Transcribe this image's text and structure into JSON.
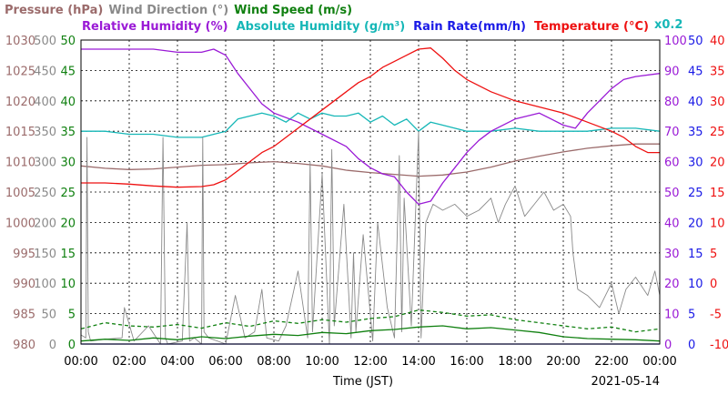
{
  "chart_data": {
    "type": "line",
    "date_label": "2021-05-14",
    "xlabel": "Time (JST)",
    "x_ticks": [
      "00:00",
      "02:00",
      "04:00",
      "06:00",
      "08:00",
      "10:00",
      "12:00",
      "14:00",
      "16:00",
      "18:00",
      "20:00",
      "22:00",
      "00:00"
    ],
    "x_range_hours": [
      0,
      24
    ],
    "scale_note": "x0.2",
    "colors": {
      "pressure": "#9b6b6b",
      "wind_direction": "#8a8a8a",
      "wind_speed": "#108010",
      "relative_humidity": "#9a1ad6",
      "absolute_humidity": "#16b7b7",
      "rain_rate": "#1a1ae6",
      "temperature": "#ee1111",
      "grid": "#000000"
    },
    "legend_top": [
      {
        "key": "pressure",
        "text": "Pressure (hPa)"
      },
      {
        "key": "wind_direction",
        "text": "Wind Direction (°)"
      },
      {
        "key": "wind_speed",
        "text": "Wind Speed (m/s)"
      }
    ],
    "legend_bottom": [
      {
        "key": "relative_humidity",
        "text": "Relative Humidity (%)"
      },
      {
        "key": "absolute_humidity",
        "text": "Absolute Humidity (g/m³)"
      },
      {
        "key": "rain_rate",
        "text": "Rain Rate(mm/h)"
      },
      {
        "key": "temperature",
        "text": "Temperature (°C)"
      }
    ],
    "axes": {
      "pressure": {
        "ticks": [
          "980",
          "985",
          "990",
          "995",
          "1000",
          "1005",
          "1010",
          "1015",
          "1020",
          "1025",
          "1030"
        ],
        "ylim": [
          980,
          1030
        ]
      },
      "wind_direction": {
        "ticks": [
          "0",
          "50",
          "100",
          "150",
          "200",
          "250",
          "300",
          "350",
          "400",
          "450",
          "500"
        ],
        "ylim": [
          0,
          500
        ]
      },
      "wind_speed": {
        "ticks": [
          "0",
          "5",
          "10",
          "15",
          "20",
          "25",
          "30",
          "35",
          "40",
          "45",
          "50"
        ],
        "ylim": [
          0,
          50
        ]
      },
      "relative_humidity": {
        "ticks": [
          "0",
          "10",
          "20",
          "30",
          "40",
          "50",
          "60",
          "70",
          "80",
          "90",
          "100"
        ],
        "ylim": [
          0,
          100
        ]
      },
      "rain_rate": {
        "ticks": [
          "0",
          "5",
          "10",
          "15",
          "20",
          "25",
          "30",
          "35",
          "40",
          "45",
          "50"
        ],
        "ylim": [
          0,
          50
        ]
      },
      "temperature": {
        "ticks": [
          "-10",
          "-5",
          "0",
          "5",
          "10",
          "15",
          "20",
          "25",
          "30",
          "35",
          "40"
        ],
        "ylim": [
          -10,
          40
        ]
      }
    },
    "series": [
      {
        "name": "Pressure (hPa)",
        "key": "pressure",
        "axis": "pressure",
        "style": "solid",
        "x": [
          0,
          1,
          2,
          3,
          4,
          5,
          6,
          7,
          8,
          9,
          10,
          11,
          12,
          13,
          14,
          15,
          16,
          17,
          18,
          19,
          20,
          21,
          22,
          23,
          24
        ],
        "values": [
          1009.3,
          1008.9,
          1008.7,
          1008.8,
          1009.1,
          1009.4,
          1009.5,
          1009.8,
          1010.0,
          1009.7,
          1009.3,
          1008.6,
          1008.2,
          1007.9,
          1007.6,
          1007.8,
          1008.3,
          1009.1,
          1010.1,
          1010.9,
          1011.6,
          1012.2,
          1012.6,
          1012.9,
          1012.9
        ]
      },
      {
        "name": "Wind Direction (°)",
        "key": "wind_direction",
        "axis": "wind_direction",
        "style": "solid",
        "x": [
          0,
          0.2,
          0.25,
          0.3,
          0.4,
          1,
          1.7,
          1.8,
          2.2,
          2.8,
          3.3,
          3.4,
          3.5,
          3.6,
          4.2,
          4.4,
          4.5,
          4.7,
          5.0,
          5.05,
          5.1,
          5.3,
          6.0,
          6.4,
          6.8,
          7.2,
          7.5,
          7.7,
          8.2,
          8.5,
          9.0,
          9.4,
          9.5,
          9.6,
          10.0,
          10.3,
          10.4,
          10.5,
          10.9,
          11.2,
          11.3,
          11.4,
          11.7,
          12.1,
          12.3,
          12.7,
          13.0,
          13.2,
          13.3,
          13.4,
          13.7,
          14.0,
          14.1,
          14.3,
          14.6,
          15.0,
          15.5,
          16.0,
          16.5,
          17.0,
          17.3,
          17.6,
          18.0,
          18.4,
          18.8,
          19.2,
          19.6,
          20.0,
          20.3,
          20.4,
          20.6,
          21.0,
          21.5,
          22.0,
          22.3,
          22.6,
          23.0,
          23.5,
          23.8,
          24
        ],
        "values": [
          15,
          10,
          340,
          20,
          5,
          8,
          10,
          60,
          5,
          30,
          0,
          340,
          10,
          0,
          5,
          200,
          5,
          10,
          0,
          340,
          20,
          10,
          0,
          80,
          10,
          20,
          90,
          10,
          5,
          30,
          120,
          10,
          300,
          20,
          280,
          0,
          320,
          30,
          230,
          10,
          150,
          20,
          180,
          5,
          200,
          60,
          10,
          310,
          20,
          240,
          30,
          350,
          10,
          200,
          230,
          220,
          230,
          210,
          220,
          240,
          200,
          230,
          260,
          210,
          230,
          250,
          220,
          230,
          210,
          150,
          90,
          80,
          60,
          100,
          50,
          90,
          110,
          80,
          120,
          80
        ]
      },
      {
        "name": "Wind Speed (m/s)",
        "key": "wind_speed",
        "axis": "wind_speed",
        "style": "solid",
        "x": [
          0,
          1,
          2,
          3,
          4,
          5,
          6,
          7,
          8,
          9,
          10,
          11,
          12,
          13,
          14,
          15,
          16,
          17,
          18,
          19,
          20,
          21,
          22,
          23,
          24
        ],
        "values": [
          0.5,
          0.8,
          0.6,
          1.0,
          0.7,
          1.2,
          0.9,
          1.3,
          1.6,
          1.4,
          1.9,
          1.7,
          2.2,
          2.4,
          2.8,
          3.0,
          2.5,
          2.7,
          2.3,
          1.9,
          1.2,
          0.9,
          0.8,
          0.7,
          0.5
        ]
      },
      {
        "name": "Wind Speed gust",
        "key": "wind_speed",
        "axis": "wind_speed",
        "style": "dashed",
        "x": [
          0,
          1,
          2,
          3,
          4,
          5,
          6,
          7,
          8,
          9,
          10,
          11,
          12,
          13,
          14,
          15,
          16,
          17,
          18,
          19,
          20,
          21,
          22,
          23,
          24
        ],
        "values": [
          2.5,
          3.5,
          3.0,
          2.8,
          3.2,
          2.6,
          3.5,
          2.9,
          3.8,
          3.4,
          4.0,
          3.6,
          4.2,
          4.5,
          5.6,
          5.2,
          4.6,
          4.8,
          4.0,
          3.5,
          3.0,
          2.5,
          2.8,
          2.0,
          2.5
        ]
      },
      {
        "name": "Relative Humidity (%)",
        "key": "relative_humidity",
        "axis": "relative_humidity",
        "style": "solid",
        "x": [
          0,
          1,
          2,
          3,
          4,
          5,
          5.5,
          6.0,
          6.5,
          7.0,
          7.5,
          8.0,
          9.0,
          10.0,
          11.0,
          11.5,
          12.0,
          12.5,
          13.0,
          13.5,
          14.0,
          14.5,
          15.0,
          15.5,
          16.0,
          16.5,
          17.0,
          18.0,
          19.0,
          19.5,
          20.0,
          20.5,
          21.0,
          21.5,
          22.0,
          22.5,
          23.0,
          24
        ],
        "values": [
          97,
          97,
          97,
          97,
          96,
          96,
          97,
          95,
          89,
          84,
          79,
          76,
          73,
          69,
          65,
          61,
          58,
          56,
          55,
          50,
          46,
          47,
          53,
          58,
          63,
          67,
          70,
          74,
          76,
          74,
          72,
          71,
          76,
          80,
          84,
          87,
          88,
          89
        ]
      },
      {
        "name": "Absolute Humidity (g/m³)",
        "key": "absolute_humidity",
        "axis": "relative_humidity",
        "style": "solid",
        "x": [
          0,
          1,
          2,
          3,
          4,
          5,
          6,
          6.5,
          7,
          7.5,
          8,
          8.5,
          9,
          9.5,
          10,
          10.5,
          11,
          11.5,
          12,
          12.5,
          13,
          13.5,
          14,
          14.5,
          15,
          15.5,
          16,
          17,
          18,
          19,
          20,
          21,
          22,
          23,
          24
        ],
        "values": [
          70,
          70,
          69,
          69,
          68,
          68,
          70,
          74,
          75,
          76,
          75,
          73,
          76,
          74,
          76,
          75,
          75,
          76,
          73,
          75,
          72,
          74,
          70,
          73,
          72,
          71,
          70,
          70,
          71,
          70,
          70,
          70,
          71,
          71,
          70
        ]
      },
      {
        "name": "Rain Rate(mm/h)",
        "key": "rain_rate",
        "axis": "rain_rate",
        "style": "solid",
        "x": [
          0,
          24
        ],
        "values": [
          0,
          0
        ]
      },
      {
        "name": "Temperature (°C)",
        "key": "temperature",
        "axis": "temperature",
        "style": "solid",
        "x": [
          0,
          1,
          2,
          3,
          4,
          5,
          5.5,
          6.0,
          6.5,
          7.0,
          7.5,
          8.0,
          8.5,
          9.0,
          9.5,
          10.0,
          10.5,
          11.0,
          11.5,
          12.0,
          12.5,
          13.0,
          13.5,
          14.0,
          14.5,
          15.0,
          15.5,
          16.0,
          17.0,
          18.0,
          19.0,
          20.0,
          21.0,
          22.0,
          22.5,
          23.0,
          23.5,
          24
        ],
        "values": [
          16.5,
          16.5,
          16.3,
          16.0,
          15.8,
          15.9,
          16.2,
          17.0,
          18.5,
          20.0,
          21.5,
          22.5,
          24.0,
          25.5,
          27.0,
          28.5,
          30.0,
          31.5,
          33.0,
          34.0,
          35.5,
          36.5,
          37.5,
          38.5,
          38.7,
          37.0,
          35.0,
          33.5,
          31.5,
          30.0,
          29.0,
          28.0,
          26.5,
          25.0,
          24.0,
          22.5,
          21.5,
          21.5
        ]
      }
    ]
  }
}
